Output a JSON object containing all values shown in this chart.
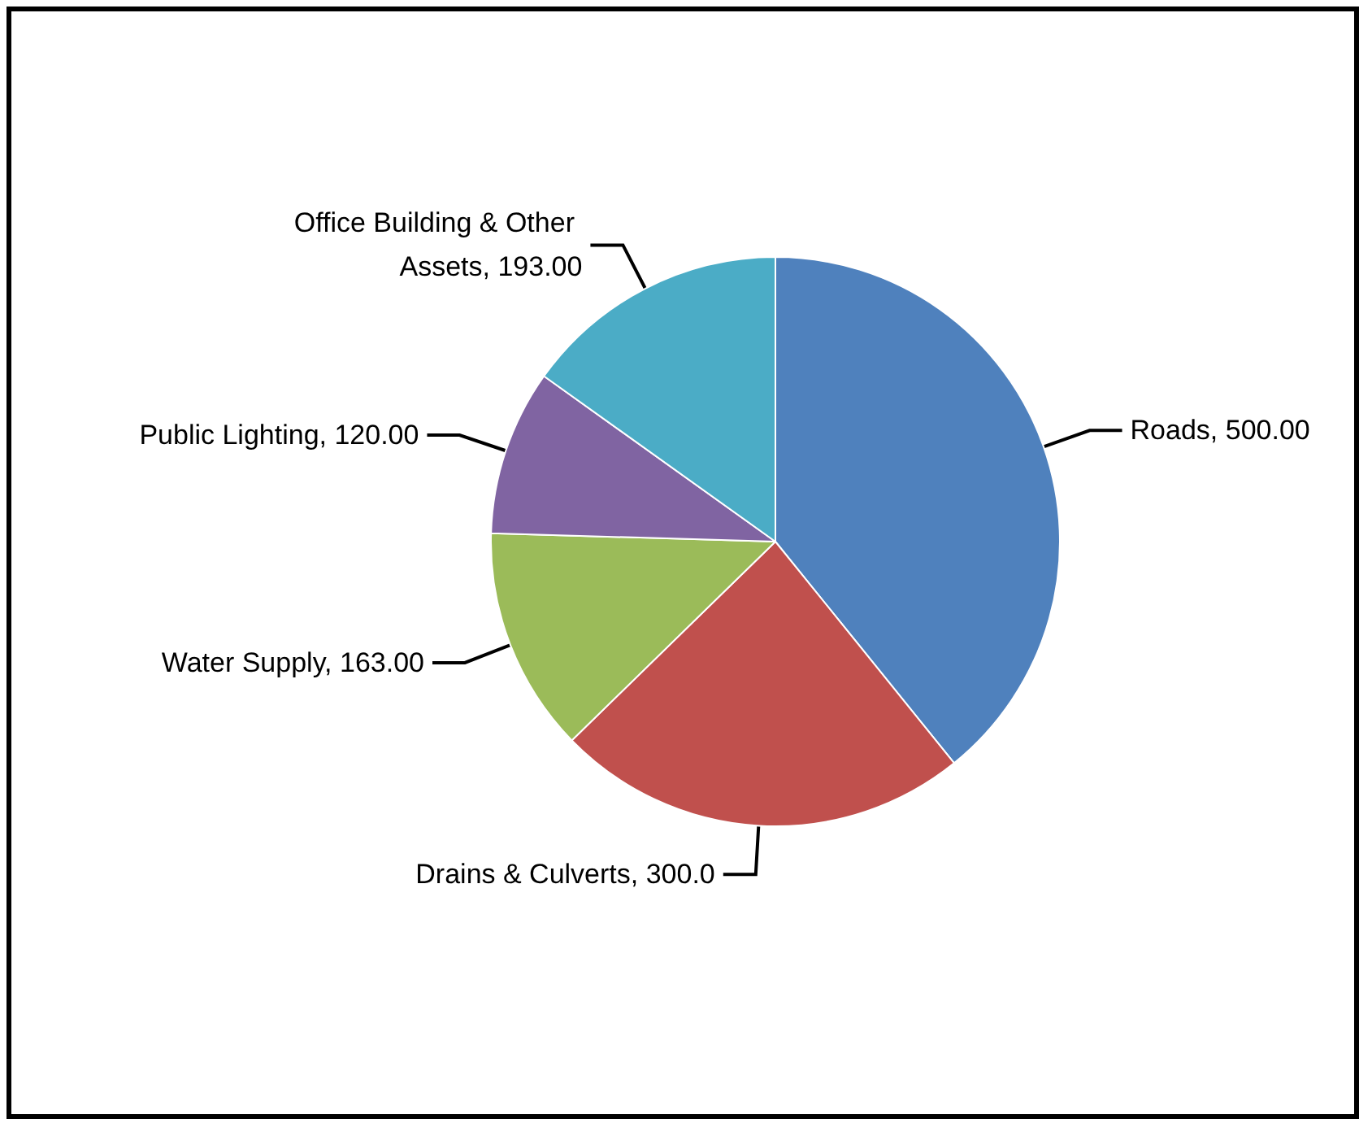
{
  "chart_data": {
    "type": "pie",
    "categories": [
      "Roads",
      "Drains & Culverts",
      "Water Supply",
      "Public Lighting",
      "Office Building & Other Assets"
    ],
    "values": [
      500,
      300,
      163,
      120,
      193
    ],
    "value_labels": [
      "500.00",
      "300.0",
      "163.00",
      "120.00",
      "193.00"
    ],
    "colors": [
      "#4f81bd",
      "#c0504d",
      "#9bbb59",
      "#8064a2",
      "#4bacc6"
    ],
    "legend": false
  }
}
